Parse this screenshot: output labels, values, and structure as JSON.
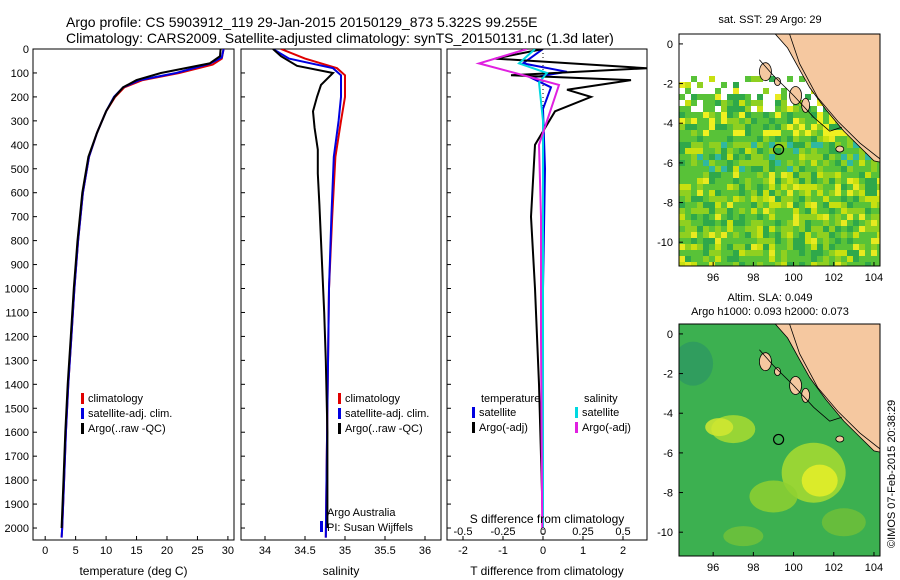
{
  "header": {
    "line1": "Argo profile: CS 5903912_119 29-Jan-2015 20150129_873 5.322S 99.255E",
    "line2": "Climatology: CARS2009. Satellite-adjusted climatology: synTS_20150131.nc (1.3d later)"
  },
  "side_label": "©IMOS 07-Feb-2015 20:38:29",
  "chart_data": [
    {
      "type": "line",
      "id": "temperature",
      "xlabel": "temperature (deg C)",
      "ylabel": "",
      "xlim": [
        -2,
        31
      ],
      "ylim": [
        2050,
        0
      ],
      "xticks": [
        "0",
        "5",
        "10",
        "15",
        "20",
        "25",
        "30"
      ],
      "yticks": [
        "0",
        "100",
        "200",
        "300",
        "400",
        "500",
        "600",
        "700",
        "800",
        "900",
        "1000",
        "1100",
        "1200",
        "1300",
        "1400",
        "1500",
        "1600",
        "1700",
        "1800",
        "1900",
        "2000"
      ],
      "legend": [
        "climatology",
        "satellite-adj. clim.",
        "Argo(..raw -QC)"
      ],
      "series": [
        {
          "name": "climatology",
          "color": "#e00000",
          "points": [
            [
              29.3,
              0
            ],
            [
              29.0,
              40
            ],
            [
              27.5,
              65
            ],
            [
              22.0,
              100
            ],
            [
              16.0,
              130
            ],
            [
              13.0,
              160
            ],
            [
              11.5,
              200
            ],
            [
              10.0,
              260
            ],
            [
              8.5,
              350
            ],
            [
              7.2,
              450
            ],
            [
              6.2,
              600
            ],
            [
              5.4,
              800
            ],
            [
              4.8,
              1000
            ],
            [
              4.3,
              1200
            ],
            [
              3.8,
              1400
            ],
            [
              3.4,
              1600
            ],
            [
              3.1,
              1800
            ],
            [
              2.8,
              2000
            ],
            [
              2.7,
              2040
            ]
          ]
        },
        {
          "name": "satellite-adj. clim.",
          "color": "#0000e0",
          "points": [
            [
              29.3,
              0
            ],
            [
              29.0,
              35
            ],
            [
              27.0,
              62
            ],
            [
              21.5,
              100
            ],
            [
              15.5,
              130
            ],
            [
              12.8,
              160
            ],
            [
              11.3,
              200
            ],
            [
              10.0,
              260
            ],
            [
              8.5,
              350
            ],
            [
              7.2,
              450
            ],
            [
              6.2,
              600
            ],
            [
              5.4,
              800
            ],
            [
              4.8,
              1000
            ],
            [
              4.3,
              1200
            ],
            [
              3.8,
              1400
            ],
            [
              3.4,
              1600
            ],
            [
              3.1,
              1800
            ],
            [
              2.8,
              2000
            ],
            [
              2.7,
              2040
            ]
          ]
        },
        {
          "name": "Argo(..raw -QC)",
          "color": "#000000",
          "points": [
            [
              28.8,
              0
            ],
            [
              28.7,
              30
            ],
            [
              27.0,
              60
            ],
            [
              19.0,
              100
            ],
            [
              15.0,
              130
            ],
            [
              12.8,
              160
            ],
            [
              11.4,
              200
            ],
            [
              10.0,
              260
            ],
            [
              8.5,
              350
            ],
            [
              7.1,
              450
            ],
            [
              6.1,
              600
            ],
            [
              5.3,
              800
            ],
            [
              4.7,
              1000
            ],
            [
              4.2,
              1200
            ],
            [
              3.7,
              1400
            ],
            [
              3.3,
              1600
            ],
            [
              3.0,
              1800
            ],
            [
              2.7,
              2000
            ]
          ]
        }
      ]
    },
    {
      "type": "line",
      "id": "salinity",
      "xlabel": "salinity",
      "xlim": [
        33.7,
        36.2
      ],
      "ylim": [
        2050,
        0
      ],
      "xticks": [
        "34",
        "34.5",
        "35",
        "35.5",
        "36"
      ],
      "legend": [
        "climatology",
        "satellite-adj. clim.",
        "Argo(..raw -QC)"
      ],
      "annotation": [
        "Argo Australia",
        "PI: Susan Wijffels"
      ],
      "series": [
        {
          "name": "climatology",
          "color": "#e00000",
          "points": [
            [
              34.2,
              0
            ],
            [
              34.5,
              40
            ],
            [
              34.9,
              80
            ],
            [
              35.0,
              110
            ],
            [
              35.0,
              200
            ],
            [
              34.95,
              300
            ],
            [
              34.88,
              450
            ],
            [
              34.84,
              700
            ],
            [
              34.8,
              1000
            ],
            [
              34.78,
              1500
            ],
            [
              34.76,
              2040
            ]
          ]
        },
        {
          "name": "satellite-adj. clim.",
          "color": "#0000e0",
          "points": [
            [
              34.1,
              0
            ],
            [
              34.3,
              40
            ],
            [
              34.85,
              80
            ],
            [
              34.95,
              110
            ],
            [
              34.95,
              200
            ],
            [
              34.92,
              300
            ],
            [
              34.86,
              450
            ],
            [
              34.83,
              700
            ],
            [
              34.8,
              1000
            ],
            [
              34.78,
              1500
            ],
            [
              34.76,
              2040
            ]
          ]
        },
        {
          "name": "Argo(..raw -QC)",
          "color": "#000000",
          "points": [
            [
              34.1,
              0
            ],
            [
              34.2,
              30
            ],
            [
              34.4,
              70
            ],
            [
              34.85,
              100
            ],
            [
              34.7,
              150
            ],
            [
              34.65,
              200
            ],
            [
              34.6,
              260
            ],
            [
              34.62,
              330
            ],
            [
              34.66,
              420
            ],
            [
              34.66,
              520
            ],
            [
              34.68,
              650
            ],
            [
              34.7,
              800
            ],
            [
              34.72,
              950
            ],
            [
              34.74,
              1100
            ],
            [
              34.76,
              1300
            ],
            [
              34.78,
              1600
            ],
            [
              34.78,
              2000
            ]
          ]
        }
      ]
    },
    {
      "type": "line",
      "id": "difference",
      "xlabel": "T difference from climatology",
      "xlabel_top": "S difference from climatology",
      "xlim": [
        -2.4,
        2.6
      ],
      "ylim": [
        2050,
        0
      ],
      "xticks": [
        "-2",
        "-1",
        "0",
        "1",
        "2"
      ],
      "xticks_top": [
        "-0.5",
        "-0.25",
        "0",
        "0.25",
        "0.5"
      ],
      "legend_left_title": "temperature",
      "legend_left": [
        "satellite",
        "Argo(-adj)"
      ],
      "legend_right_title": "salinity",
      "legend_right": [
        "satellite",
        "Argo(-adj)"
      ],
      "series": [
        {
          "name": "T satellite",
          "color": "#0000e0",
          "points": [
            [
              0,
              0
            ],
            [
              -0.5,
              60
            ],
            [
              0.6,
              95
            ],
            [
              -0.3,
              120
            ],
            [
              0.2,
              160
            ],
            [
              0,
              250
            ],
            [
              0.05,
              500
            ],
            [
              0,
              1000
            ],
            [
              0,
              2000
            ]
          ]
        },
        {
          "name": "T Argo(-adj)",
          "color": "#000000",
          "points": [
            [
              0,
              0
            ],
            [
              -1.2,
              40
            ],
            [
              2.6,
              80
            ],
            [
              -0.8,
              110
            ],
            [
              2.2,
              130
            ],
            [
              0.6,
              170
            ],
            [
              1.2,
              200
            ],
            [
              0.3,
              260
            ],
            [
              -0.2,
              400
            ],
            [
              -0.3,
              700
            ],
            [
              -0.2,
              1000
            ],
            [
              -0.1,
              1400
            ],
            [
              0,
              2000
            ]
          ]
        },
        {
          "name": "S satellite",
          "color": "#00d8e0",
          "points": [
            [
              -0.2,
              0
            ],
            [
              -0.6,
              60
            ],
            [
              0.1,
              100
            ],
            [
              -0.1,
              140
            ],
            [
              0,
              300
            ],
            [
              0,
              1000
            ],
            [
              0,
              2000
            ]
          ]
        },
        {
          "name": "S Argo(-adj)",
          "color": "#e020e0",
          "points": [
            [
              -0.4,
              0
            ],
            [
              -1.6,
              60
            ],
            [
              -0.7,
              100
            ],
            [
              0.4,
              150
            ],
            [
              0.2,
              250
            ],
            [
              -0.1,
              400
            ],
            [
              -0.05,
              700
            ],
            [
              -0.05,
              1200
            ],
            [
              -0.02,
              2000
            ]
          ]
        }
      ]
    },
    {
      "type": "heatmap",
      "id": "map_sst",
      "title": "sat. SST: 29 Argo: 29",
      "xlim": [
        94.3,
        104.3
      ],
      "ylim": [
        -11.2,
        0.5
      ],
      "xticks": [
        "96",
        "98",
        "100",
        "102",
        "104"
      ],
      "yticks": [
        "0",
        "-2",
        "-4",
        "-6",
        "-8",
        "-10"
      ],
      "marker": [
        99.255,
        -5.322
      ]
    },
    {
      "type": "heatmap",
      "id": "map_sla",
      "title_line1": "Altim. SLA: 0.049",
      "title_line2": "Argo h1000: 0.093 h2000: 0.073",
      "xlim": [
        94.3,
        104.3
      ],
      "ylim": [
        -11.2,
        0.5
      ],
      "xticks": [
        "96",
        "98",
        "100",
        "102",
        "104"
      ],
      "yticks": [
        "0",
        "-2",
        "-4",
        "-6",
        "-8",
        "-10"
      ],
      "marker": [
        99.255,
        -5.322
      ]
    }
  ]
}
